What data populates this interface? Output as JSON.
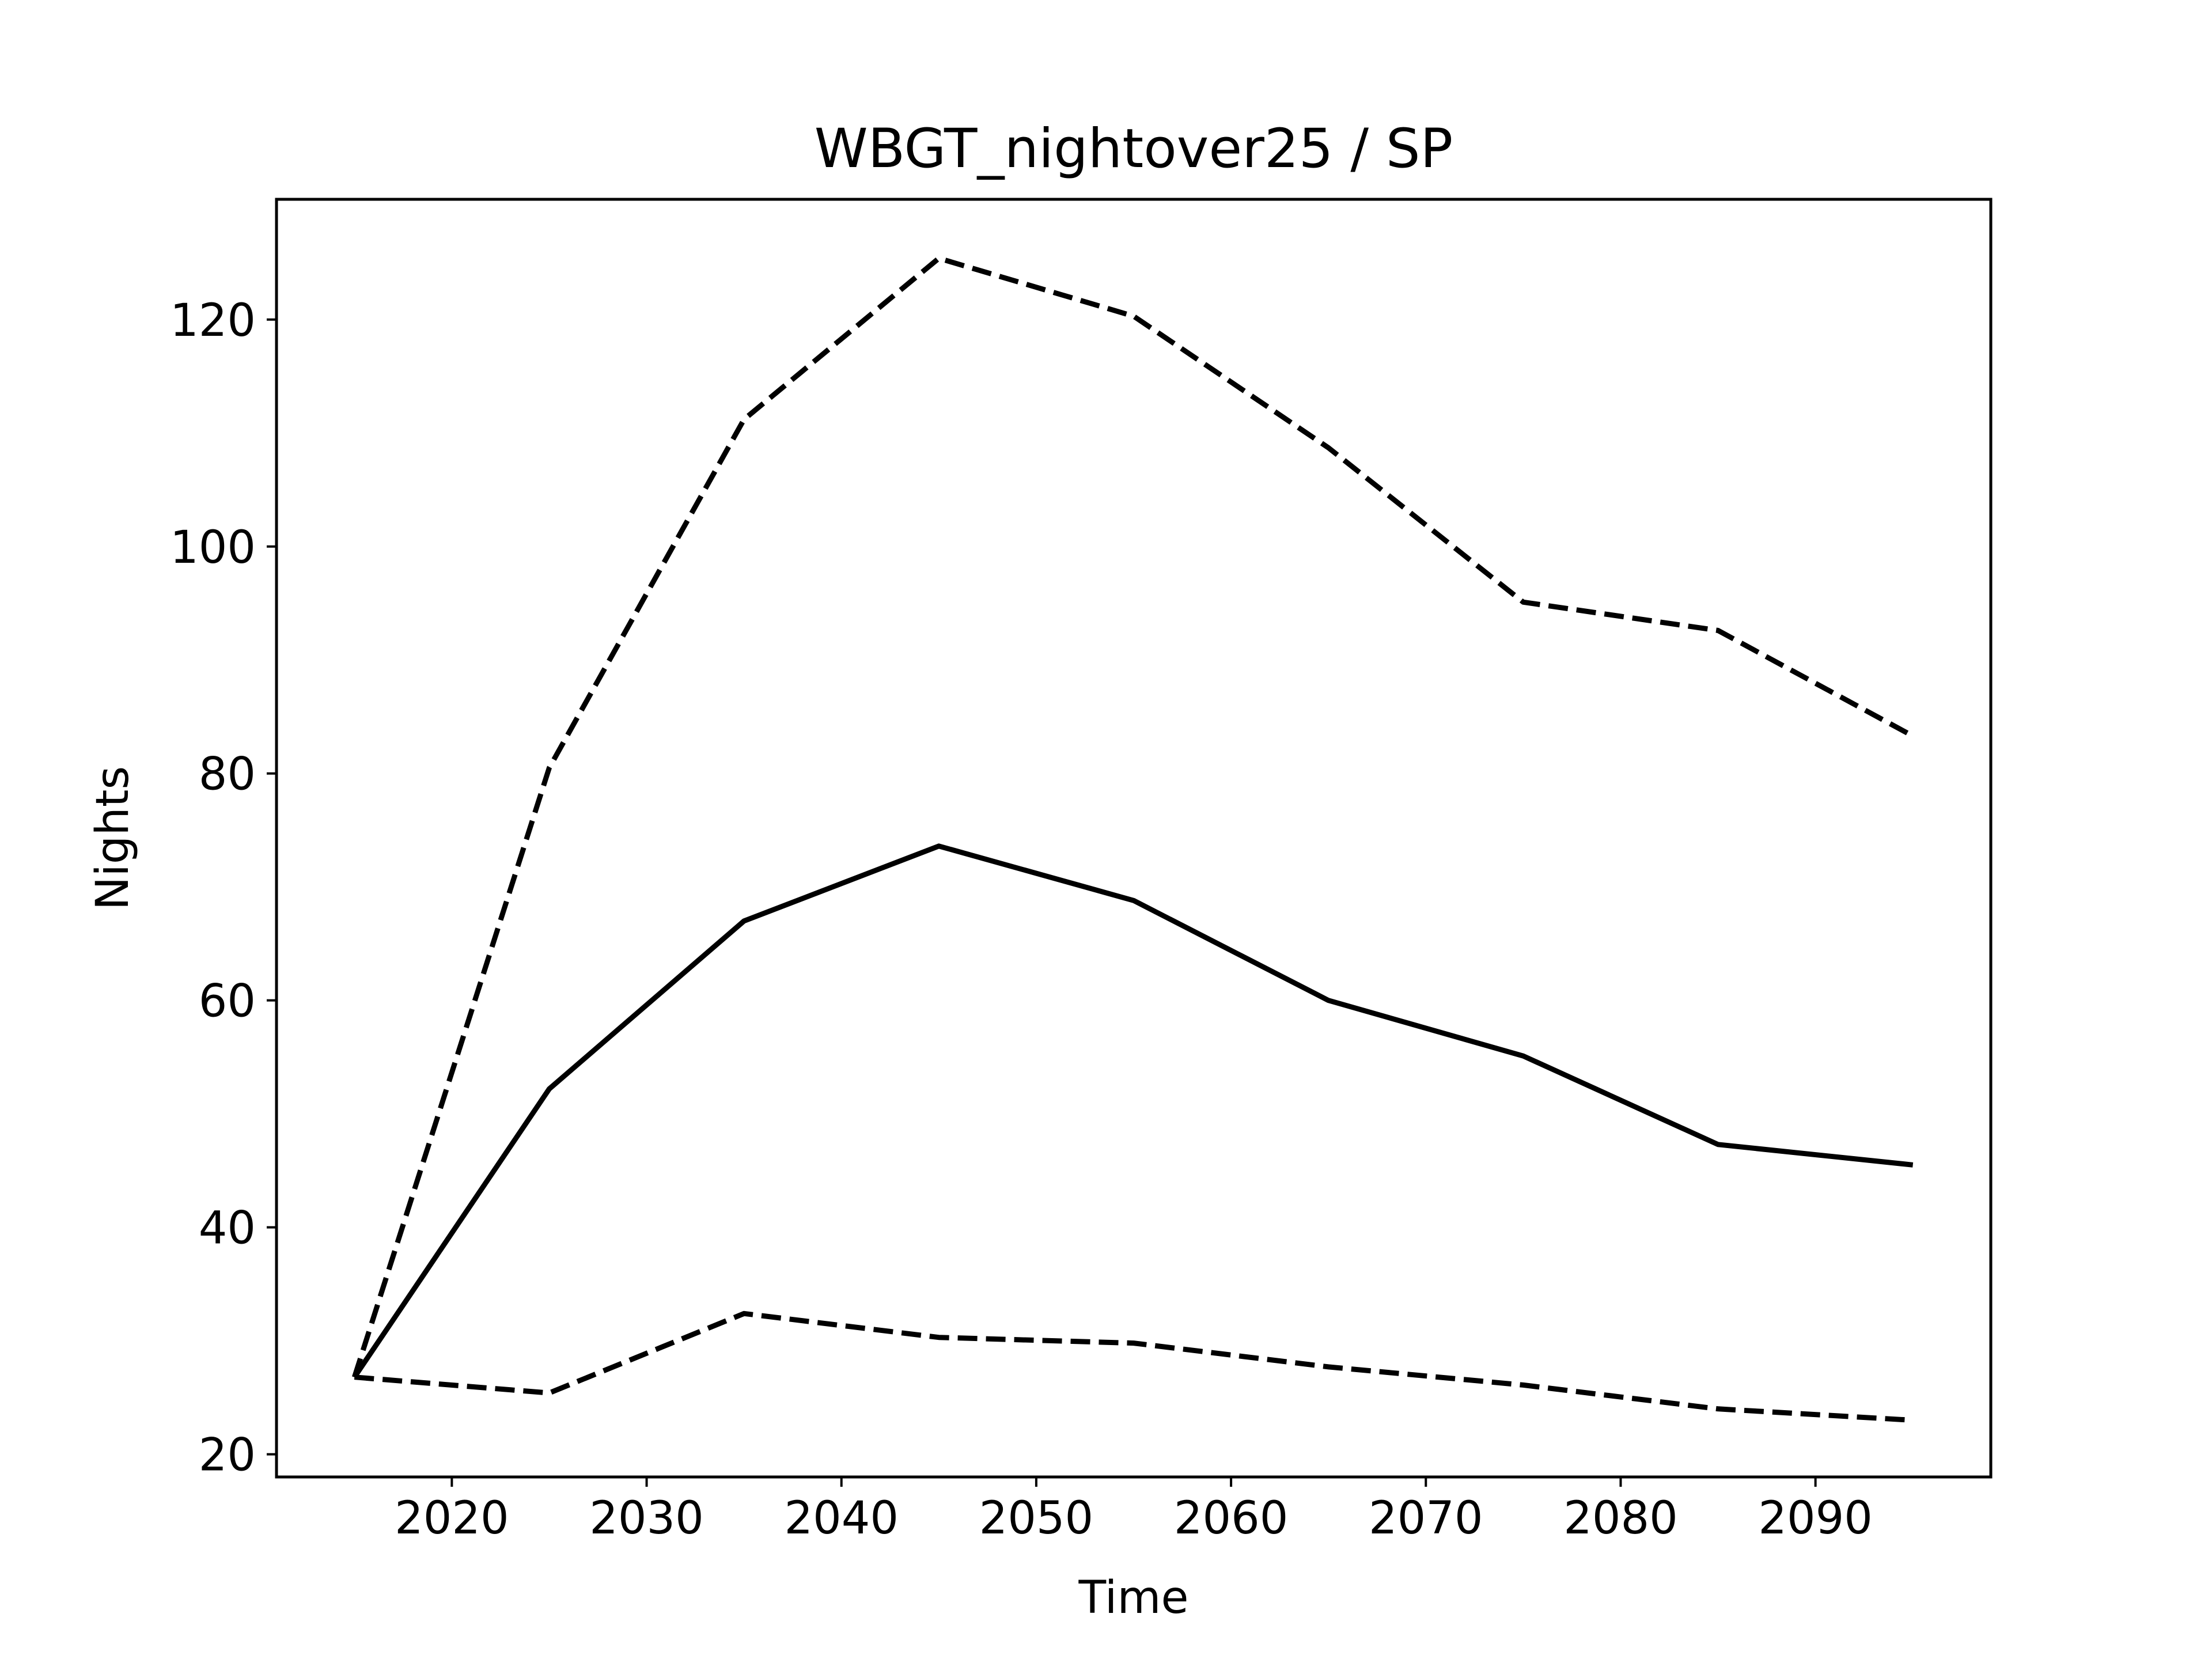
{
  "chart_data": {
    "type": "line",
    "title": "WBGT_nightover25 / SP",
    "xlabel": "Time",
    "ylabel": "Nights",
    "xlim": [
      2011,
      2099
    ],
    "ylim": [
      18.0,
      130.6
    ],
    "grid": false,
    "xticks": [
      2020,
      2030,
      2040,
      2050,
      2060,
      2070,
      2080,
      2090
    ],
    "yticks": [
      20,
      40,
      60,
      80,
      100,
      120
    ],
    "x": [
      2015,
      2025,
      2035,
      2045,
      2055,
      2065,
      2075,
      2085,
      2095
    ],
    "series": [
      {
        "style": "solid",
        "color": "#000000",
        "values": [
          26.8,
          52.2,
          67.0,
          73.6,
          68.8,
          60.0,
          55.1,
          47.3,
          45.5
        ]
      },
      {
        "style": "dashed",
        "color": "#000000",
        "values": [
          26.8,
          80.5,
          111.2,
          125.4,
          120.3,
          108.7,
          95.1,
          92.6,
          83.3
        ]
      },
      {
        "style": "dashed",
        "color": "#000000",
        "values": [
          26.8,
          25.4,
          32.4,
          30.3,
          29.8,
          27.7,
          26.1,
          24.0,
          23.0
        ]
      }
    ]
  }
}
